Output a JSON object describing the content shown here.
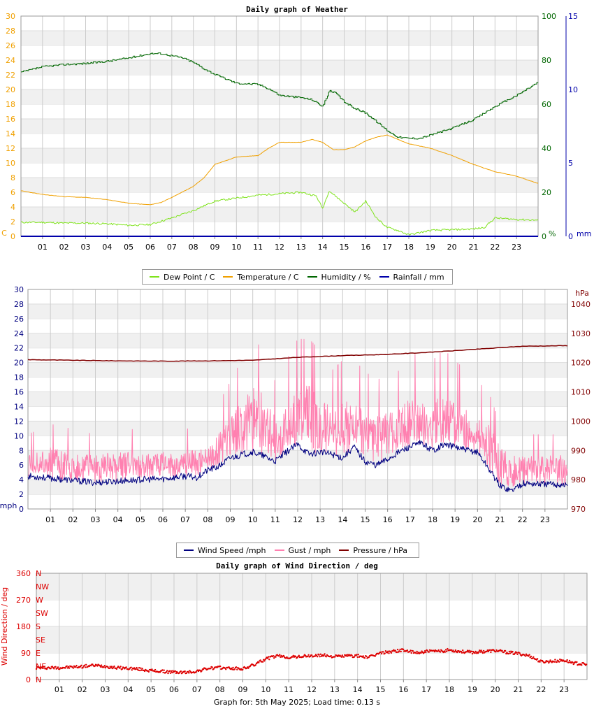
{
  "colors": {
    "dewpoint": "#7fe31c",
    "temperature": "#f0a000",
    "humidity": "#006600",
    "rainfall": "#0000aa",
    "windspeed": "#000080",
    "gust": "#ff80b0",
    "pressure": "#800000",
    "winddir": "#dd0000"
  },
  "chart_data": [
    {
      "type": "line",
      "title": "Daily graph of Weather",
      "x_ticks": [
        "01",
        "02",
        "03",
        "04",
        "05",
        "06",
        "07",
        "08",
        "09",
        "10",
        "11",
        "12",
        "13",
        "14",
        "15",
        "16",
        "17",
        "18",
        "19",
        "20",
        "21",
        "22",
        "23"
      ],
      "xlim": [
        0,
        24
      ],
      "y_left": {
        "label": "C",
        "min": 0,
        "max": 30,
        "ticks": [
          "0",
          "2",
          "4",
          "6",
          "8",
          "10",
          "12",
          "14",
          "16",
          "18",
          "20",
          "22",
          "24",
          "26",
          "28",
          "30"
        ]
      },
      "y_right1": {
        "label": "%",
        "min": 0,
        "max": 100,
        "ticks": [
          "0",
          "20",
          "40",
          "60",
          "80",
          "100"
        ]
      },
      "y_right2": {
        "label": "mm",
        "min": 0,
        "max": 15,
        "ticks": [
          "0",
          "5",
          "10",
          "15"
        ]
      },
      "series": [
        {
          "name": "Dew Point / C",
          "x": [
            0,
            1,
            2,
            3,
            4,
            5,
            6,
            7,
            8,
            9,
            10,
            11,
            12,
            13,
            13.7,
            14,
            14.3,
            15,
            15.5,
            16,
            16.5,
            17,
            17.5,
            18,
            18.5,
            19,
            20,
            21,
            21.5,
            22,
            23,
            24
          ],
          "y": [
            1.9,
            1.9,
            1.8,
            1.8,
            1.7,
            1.5,
            1.6,
            2.5,
            3.5,
            4.8,
            5.2,
            5.6,
            5.8,
            6.0,
            5.5,
            3.8,
            6.2,
            4.5,
            3.3,
            4.8,
            2.5,
            1.2,
            0.8,
            0.2,
            0.5,
            0.8,
            0.9,
            1.0,
            1.2,
            2.5,
            2.3,
            2.2
          ]
        },
        {
          "name": "Temperature / C",
          "x": [
            0,
            1,
            2,
            3,
            4,
            5,
            6,
            6.5,
            7,
            8,
            8.5,
            9,
            10,
            11,
            11.5,
            12,
            13,
            13.5,
            14,
            14.5,
            15,
            15.5,
            16,
            16.5,
            17,
            17.5,
            18,
            19,
            20,
            21,
            22,
            23,
            24
          ],
          "y": [
            6.2,
            5.7,
            5.4,
            5.3,
            5.0,
            4.5,
            4.3,
            4.6,
            5.3,
            6.8,
            8.0,
            9.8,
            10.8,
            11.0,
            12.0,
            12.8,
            12.8,
            13.2,
            12.8,
            11.8,
            11.8,
            12.2,
            13.0,
            13.5,
            13.8,
            13.2,
            12.6,
            12.0,
            11.0,
            9.8,
            8.8,
            8.2,
            7.2
          ]
        },
        {
          "name": "Humidity / %",
          "x": [
            0,
            1,
            2,
            3,
            4,
            5,
            6,
            6.5,
            7,
            7.5,
            8,
            8.5,
            9,
            9.5,
            10,
            11,
            11.5,
            12,
            12.5,
            13,
            13.5,
            14,
            14.3,
            14.6,
            15,
            15.5,
            16,
            16.5,
            17,
            17.5,
            18,
            18.5,
            19,
            20,
            21,
            22,
            23,
            24
          ],
          "y": [
            74.5,
            77,
            78,
            78.5,
            79.5,
            81,
            83,
            83,
            82,
            81,
            79,
            76,
            73.5,
            71.5,
            69.5,
            69,
            67,
            64,
            63.5,
            63,
            62,
            59,
            66,
            65,
            61,
            58,
            56,
            52,
            48,
            45,
            44.5,
            44.5,
            46,
            49,
            53,
            59,
            64,
            70
          ]
        },
        {
          "name": "Rainfall / mm",
          "x": [
            0,
            24
          ],
          "y": [
            0,
            0
          ]
        }
      ]
    },
    {
      "type": "line",
      "title": "",
      "x_ticks": [
        "01",
        "02",
        "03",
        "04",
        "05",
        "06",
        "07",
        "08",
        "09",
        "10",
        "11",
        "12",
        "13",
        "14",
        "15",
        "16",
        "17",
        "18",
        "19",
        "20",
        "21",
        "22",
        "23"
      ],
      "xlim": [
        0,
        24
      ],
      "y_left": {
        "label": "mph",
        "min": 0,
        "max": 30,
        "ticks": [
          "0",
          "2",
          "4",
          "6",
          "8",
          "10",
          "12",
          "14",
          "16",
          "18",
          "20",
          "22",
          "24",
          "26",
          "28",
          "30"
        ]
      },
      "y_right": {
        "label": "hPa",
        "min": 970,
        "max": 1045,
        "ticks": [
          "970",
          "980",
          "990",
          "1000",
          "1010",
          "1020",
          "1030",
          "1040"
        ]
      },
      "series": [
        {
          "name": "Wind Speed /mph",
          "x": [
            0,
            1,
            2,
            3,
            4,
            5,
            6,
            7,
            7.5,
            8,
            8.5,
            9,
            10,
            10.5,
            11,
            11.5,
            12,
            12.5,
            13,
            13.5,
            14,
            14.5,
            15,
            15.5,
            16,
            16.5,
            17,
            17.5,
            18,
            18.5,
            19,
            19.5,
            20,
            20.5,
            21,
            21.5,
            22,
            23,
            24
          ],
          "y": [
            4.5,
            4.2,
            3.9,
            3.6,
            3.8,
            4.0,
            4.1,
            4.5,
            4.3,
            5.3,
            5.8,
            7.0,
            7.8,
            7.2,
            6.5,
            7.8,
            8.8,
            7.5,
            7.8,
            7.5,
            7.0,
            8.5,
            6.5,
            6.0,
            6.8,
            7.8,
            8.5,
            9.0,
            8.0,
            8.8,
            8.5,
            8.0,
            7.8,
            5.5,
            3.2,
            2.5,
            3.5,
            3.4,
            3.3
          ]
        },
        {
          "name": "Gust / mph",
          "x": [
            0,
            1,
            2,
            3,
            4,
            5,
            6,
            7,
            8,
            9,
            9.5,
            10,
            10.5,
            11,
            11.5,
            12,
            12.5,
            13,
            13.5,
            14,
            14.5,
            15,
            15.5,
            16,
            16.5,
            17,
            17.5,
            18,
            18.5,
            19,
            19.5,
            20,
            20.5,
            21,
            21.5,
            22,
            23,
            24
          ],
          "y": [
            7,
            8,
            7.5,
            7,
            7.5,
            7.5,
            7.5,
            7.5,
            8,
            12,
            14,
            16,
            15,
            12,
            14,
            16,
            16,
            15,
            13,
            14,
            14,
            13,
            12,
            13,
            13,
            15,
            14,
            14,
            15,
            14,
            13,
            12,
            11,
            8,
            7,
            7,
            7,
            7
          ]
        },
        {
          "name": "Pressure / hPa",
          "x": [
            0,
            2,
            4,
            6,
            8,
            10,
            12,
            14,
            16,
            18,
            20,
            22,
            24
          ],
          "y": [
            1021,
            1020.8,
            1020.6,
            1020.5,
            1020.6,
            1020.8,
            1021.8,
            1022.4,
            1022.8,
            1023.6,
            1024.6,
            1025.6,
            1025.8
          ]
        }
      ]
    },
    {
      "type": "scatter",
      "title": "Daily graph of Wind Direction / deg",
      "x_ticks": [
        "01",
        "02",
        "03",
        "04",
        "05",
        "06",
        "07",
        "08",
        "09",
        "10",
        "11",
        "12",
        "13",
        "14",
        "15",
        "16",
        "17",
        "18",
        "19",
        "20",
        "21",
        "22",
        "23"
      ],
      "xlim": [
        0,
        24
      ],
      "y_left": {
        "label": "Wind Direction / deg",
        "min": 0,
        "max": 360,
        "ticks": [
          "0",
          "90",
          "180",
          "270",
          "360"
        ]
      },
      "compass": [
        "N",
        "NE",
        "E",
        "SE",
        "S",
        "SW",
        "W",
        "NW",
        "N"
      ],
      "series": [
        {
          "name": "",
          "x": [
            0,
            0.5,
            1,
            1.5,
            2,
            2.5,
            3,
            3.5,
            4,
            4.5,
            5,
            5.5,
            6,
            6.5,
            7,
            7.5,
            8,
            8.5,
            9,
            9.5,
            10,
            10.5,
            11,
            11.5,
            12,
            12.5,
            13,
            13.5,
            14,
            14.5,
            15,
            15.5,
            16,
            16.5,
            17,
            17.5,
            18,
            18.5,
            19,
            19.5,
            20,
            20.5,
            21,
            21.5,
            22,
            22.5,
            23,
            23.5,
            24
          ],
          "y": [
            40,
            40,
            40,
            42,
            44,
            48,
            45,
            40,
            38,
            35,
            30,
            27,
            25,
            24,
            28,
            38,
            40,
            38,
            36,
            50,
            70,
            80,
            75,
            78,
            80,
            82,
            78,
            80,
            80,
            75,
            90,
            95,
            100,
            90,
            95,
            95,
            100,
            95,
            92,
            95,
            98,
            92,
            88,
            80,
            60,
            62,
            65,
            55,
            50
          ]
        }
      ]
    }
  ],
  "legend1": {
    "items": [
      "Dew Point / C",
      "Temperature / C",
      "Humidity / %",
      "Rainfall / mm"
    ]
  },
  "legend2": {
    "items": [
      "Wind Speed /mph",
      "Gust / mph",
      "Pressure / hPa"
    ]
  },
  "footer": "Graph for: 5th May 2025; Load time: 0.13 s"
}
